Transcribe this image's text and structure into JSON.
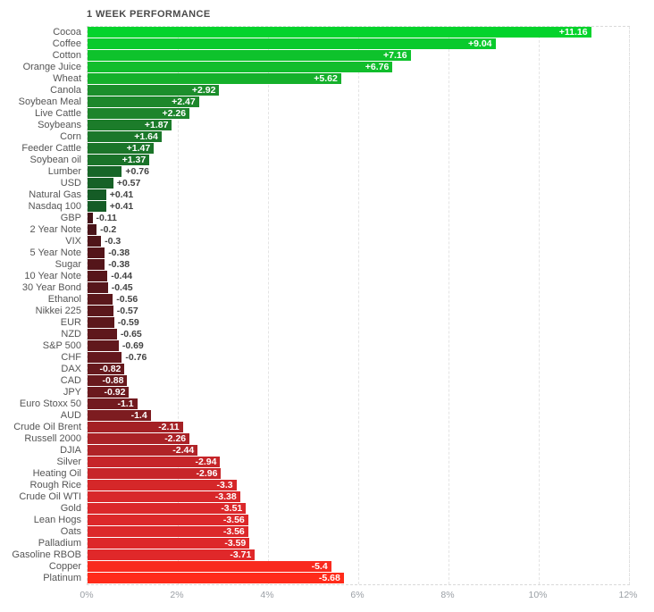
{
  "title": "1 WEEK PERFORMANCE",
  "chart_data": {
    "type": "bar",
    "orientation": "horizontal",
    "title": "1 WEEK PERFORMANCE",
    "xlabel": "",
    "ylabel": "",
    "x_max": 12,
    "x_ticks": [
      "0%",
      "2%",
      "4%",
      "6%",
      "8%",
      "10%",
      "12%"
    ],
    "grid": "dashed-vertical",
    "legend": "none",
    "positive_color_range": [
      "#155c26",
      "#04d32c"
    ],
    "negative_color_range": [
      "#441318",
      "#ff2b1a"
    ],
    "items": [
      {
        "name": "Cocoa",
        "value": 11.16,
        "label": "+11.16",
        "color": "#04d32c"
      },
      {
        "name": "Coffee",
        "value": 9.04,
        "label": "+9.04",
        "color": "#09ca2c"
      },
      {
        "name": "Cotton",
        "value": 7.16,
        "label": "+7.16",
        "color": "#0ec22c"
      },
      {
        "name": "Orange Juice",
        "value": 6.76,
        "label": "+6.76",
        "color": "#11bd2c"
      },
      {
        "name": "Wheat",
        "value": 5.62,
        "label": "+5.62",
        "color": "#15b02b"
      },
      {
        "name": "Canola",
        "value": 2.92,
        "label": "+2.92",
        "color": "#1c8e2c"
      },
      {
        "name": "Soybean Meal",
        "value": 2.47,
        "label": "+2.47",
        "color": "#1d872b"
      },
      {
        "name": "Live Cattle",
        "value": 2.26,
        "label": "+2.26",
        "color": "#1d842b"
      },
      {
        "name": "Soybeans",
        "value": 1.87,
        "label": "+1.87",
        "color": "#1c7c2a"
      },
      {
        "name": "Corn",
        "value": 1.64,
        "label": "+1.64",
        "color": "#1b782a"
      },
      {
        "name": "Feeder Cattle",
        "value": 1.47,
        "label": "+1.47",
        "color": "#1b7529"
      },
      {
        "name": "Soybean oil",
        "value": 1.37,
        "label": "+1.37",
        "color": "#1a7329"
      },
      {
        "name": "Lumber",
        "value": 0.76,
        "label": "+0.76",
        "color": "#176628"
      },
      {
        "name": "USD",
        "value": 0.57,
        "label": "+0.57",
        "color": "#166127"
      },
      {
        "name": "Natural Gas",
        "value": 0.41,
        "label": "+0.41",
        "color": "#155c26"
      },
      {
        "name": "Nasdaq 100",
        "value": 0.41,
        "label": "+0.41",
        "color": "#155c26"
      },
      {
        "name": "GBP",
        "value": -0.11,
        "label": "-0.11",
        "color": "#441318"
      },
      {
        "name": "2 Year Note",
        "value": -0.2,
        "label": "-0.2",
        "color": "#4a1419"
      },
      {
        "name": "VIX",
        "value": -0.3,
        "label": "-0.3",
        "color": "#501519"
      },
      {
        "name": "5 Year Note",
        "value": -0.38,
        "label": "-0.38",
        "color": "#54151a"
      },
      {
        "name": "Sugar",
        "value": -0.38,
        "label": "-0.38",
        "color": "#54151a"
      },
      {
        "name": "10 Year Note",
        "value": -0.44,
        "label": "-0.44",
        "color": "#57161a"
      },
      {
        "name": "30 Year Bond",
        "value": -0.45,
        "label": "-0.45",
        "color": "#57161b"
      },
      {
        "name": "Ethanol",
        "value": -0.56,
        "label": "-0.56",
        "color": "#5b171b"
      },
      {
        "name": "Nikkei 225",
        "value": -0.57,
        "label": "-0.57",
        "color": "#5b171b"
      },
      {
        "name": "EUR",
        "value": -0.59,
        "label": "-0.59",
        "color": "#5c171b"
      },
      {
        "name": "NZD",
        "value": -0.65,
        "label": "-0.65",
        "color": "#5f171c"
      },
      {
        "name": "S&P 500",
        "value": -0.69,
        "label": "-0.69",
        "color": "#61181c"
      },
      {
        "name": "CHF",
        "value": -0.76,
        "label": "-0.76",
        "color": "#64181d"
      },
      {
        "name": "DAX",
        "value": -0.82,
        "label": "-0.82",
        "color": "#66191d"
      },
      {
        "name": "CAD",
        "value": -0.88,
        "label": "-0.88",
        "color": "#69191d"
      },
      {
        "name": "JPY",
        "value": -0.92,
        "label": "-0.92",
        "color": "#6b191e"
      },
      {
        "name": "Euro Stoxx 50",
        "value": -1.1,
        "label": "-1.1",
        "color": "#721a1f"
      },
      {
        "name": "AUD",
        "value": -1.4,
        "label": "-1.4",
        "color": "#7d1c20"
      },
      {
        "name": "Crude Oil Brent",
        "value": -2.11,
        "label": "-2.11",
        "color": "#a42125"
      },
      {
        "name": "Russell 2000",
        "value": -2.26,
        "label": "-2.26",
        "color": "#aa2226"
      },
      {
        "name": "DJIA",
        "value": -2.44,
        "label": "-2.44",
        "color": "#b02327"
      },
      {
        "name": "Silver",
        "value": -2.94,
        "label": "-2.94",
        "color": "#c62529"
      },
      {
        "name": "Heating Oil",
        "value": -2.96,
        "label": "-2.96",
        "color": "#c72529"
      },
      {
        "name": "Rough Rice",
        "value": -3.3,
        "label": "-3.3",
        "color": "#d52729"
      },
      {
        "name": "Crude Oil WTI",
        "value": -3.38,
        "label": "-3.38",
        "color": "#d8272a"
      },
      {
        "name": "Gold",
        "value": -3.51,
        "label": "-3.51",
        "color": "#db272a"
      },
      {
        "name": "Lean Hogs",
        "value": -3.56,
        "label": "-3.56",
        "color": "#dc282a"
      },
      {
        "name": "Oats",
        "value": -3.56,
        "label": "-3.56",
        "color": "#dc282a"
      },
      {
        "name": "Palladium",
        "value": -3.59,
        "label": "-3.59",
        "color": "#dd282a"
      },
      {
        "name": "Gasoline RBOB",
        "value": -3.71,
        "label": "-3.71",
        "color": "#e0282a"
      },
      {
        "name": "Copper",
        "value": -5.4,
        "label": "-5.4",
        "color": "#f92a1e"
      },
      {
        "name": "Platinum",
        "value": -5.68,
        "label": "-5.68",
        "color": "#ff2b1a"
      }
    ]
  }
}
